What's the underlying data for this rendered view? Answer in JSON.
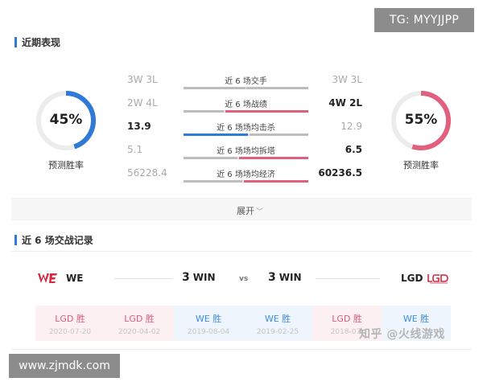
{
  "watermarks": {
    "tg": "TG: MYYJJPP",
    "site": "www.zjmdk.com",
    "zhihu": "知乎 @火线游戏"
  },
  "recent": {
    "title": "近期表现",
    "left": {
      "percent": "45%",
      "fraction": 0.45,
      "label": "预测胜率",
      "color": "#2f7ad6"
    },
    "right": {
      "percent": "55%",
      "fraction": 0.55,
      "label": "预测胜率",
      "color": "#e0607e"
    },
    "rows": [
      {
        "label": "近 6 场交手",
        "left": "3W 3L",
        "right": "3W 3L",
        "left_bold": false,
        "right_bold": false,
        "left_share": 0.5,
        "right_share": 0.5,
        "left_color": "gray",
        "right_color": "gray"
      },
      {
        "label": "近 6 场战绩",
        "left": "2W 4L",
        "right": "4W 2L",
        "left_bold": false,
        "right_bold": true,
        "left_share": 0.33,
        "right_share": 0.67,
        "left_color": "gray",
        "right_color": "red"
      },
      {
        "label": "近 6 场场均击杀",
        "left": "13.9",
        "right": "12.9",
        "left_bold": true,
        "right_bold": false,
        "left_share": 0.52,
        "right_share": 0.48,
        "left_color": "blue",
        "right_color": "gray"
      },
      {
        "label": "近 6 场场均拆塔",
        "left": "5.1",
        "right": "6.5",
        "left_bold": false,
        "right_bold": true,
        "left_share": 0.44,
        "right_share": 0.56,
        "left_color": "gray",
        "right_color": "red"
      },
      {
        "label": "近 6 场场均经济",
        "left": "56228.4",
        "right": "60236.5",
        "left_bold": false,
        "right_bold": true,
        "left_share": 0.48,
        "right_share": 0.52,
        "left_color": "gray",
        "right_color": "red"
      }
    ],
    "expand_label": "展开"
  },
  "h2h": {
    "title": "近 6 场交战记录",
    "team_left": {
      "logo": "WE",
      "name": "WE",
      "score": "3",
      "win": "WIN",
      "logo_color": "#d7263d"
    },
    "team_right": {
      "logo": "LGD",
      "name": "LGD",
      "score": "3",
      "win": "WIN",
      "logo_color": "#d7263d"
    },
    "vs": "vs",
    "matches": [
      {
        "result": "LGD 胜",
        "date": "2020-07-20",
        "winner": "red"
      },
      {
        "result": "LGD 胜",
        "date": "2020-04-02",
        "winner": "red"
      },
      {
        "result": "WE 胜",
        "date": "2019-08-04",
        "winner": "blue"
      },
      {
        "result": "WE 胜",
        "date": "2019-02-25",
        "winner": "blue"
      },
      {
        "result": "LGD 胜",
        "date": "2018-07-",
        "winner": "red"
      },
      {
        "result": "WE 胜",
        "date": "",
        "winner": "blue"
      }
    ]
  }
}
